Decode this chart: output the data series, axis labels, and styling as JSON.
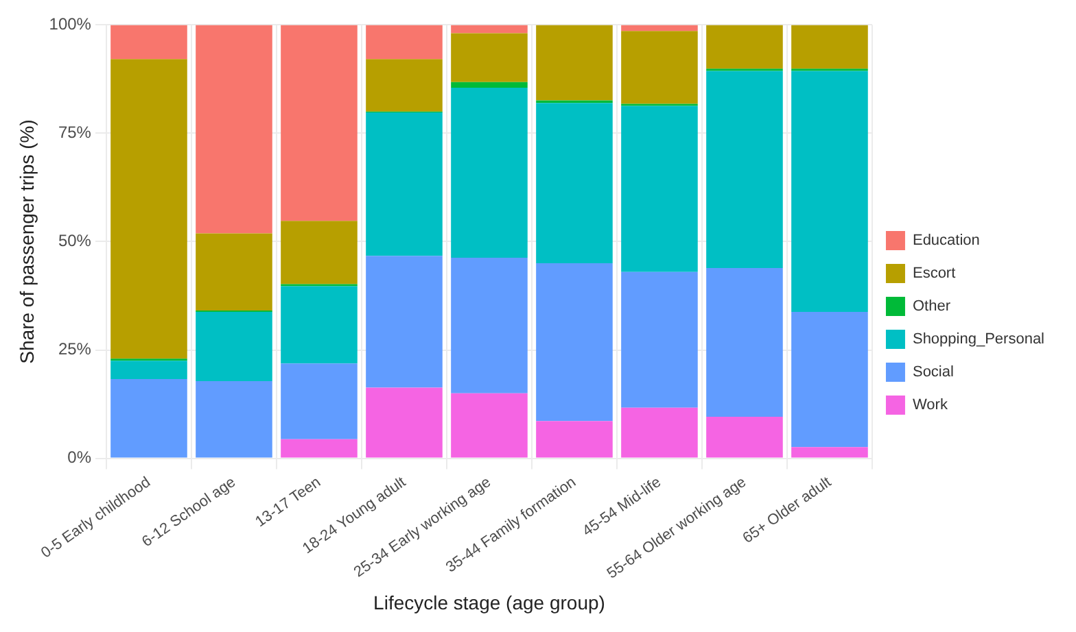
{
  "chart_data": {
    "type": "bar",
    "stacked": true,
    "xlabel": "Lifecycle stage (age group)",
    "ylabel": "Share of passenger trips (%)",
    "categories": [
      "0-5 Early childhood",
      "6-12 School age",
      "13-17 Teen",
      "18-24 Young adult",
      "25-34 Early working age",
      "35-44 Family formation",
      "45-54 Mid-life",
      "55-64 Older working age",
      "65+ Older adult"
    ],
    "series": [
      {
        "name": "Work",
        "color": "#f564e3",
        "values": [
          0,
          null,
          4.4,
          16.3,
          15.0,
          8.6,
          11.7,
          9.6,
          2.6
        ]
      },
      {
        "name": "Social",
        "color": "#619cff",
        "values": [
          18.3,
          17.8,
          17.5,
          30.4,
          31.3,
          36.4,
          31.3,
          34.3,
          31.2
        ]
      },
      {
        "name": "Shopping_Personal",
        "color": "#00bfc4",
        "values": [
          4.2,
          16.0,
          17.8,
          33.1,
          39.2,
          37.0,
          38.3,
          45.5,
          55.6
        ]
      },
      {
        "name": "Other",
        "color": "#00ba38",
        "values": [
          0.5,
          0.3,
          0.5,
          0.2,
          1.3,
          0.6,
          0.5,
          0.5,
          0.5
        ]
      },
      {
        "name": "Escort",
        "color": "#b79f00",
        "values": [
          69.1,
          17.8,
          14.6,
          12.1,
          11.3,
          17.4,
          16.8,
          10.1,
          10.1
        ]
      },
      {
        "name": "Education",
        "color": "#f8766d",
        "values": [
          7.9,
          48.1,
          45.2,
          7.9,
          1.9,
          0,
          1.4,
          0,
          0
        ]
      }
    ],
    "ylim": [
      0,
      100
    ],
    "yticks": [
      {
        "value": 0,
        "label": "0%"
      },
      {
        "value": 25,
        "label": "25%"
      },
      {
        "value": 50,
        "label": "50%"
      },
      {
        "value": 75,
        "label": "75%"
      },
      {
        "value": 100,
        "label": "100%"
      }
    ],
    "grid": true,
    "legend": "right"
  }
}
